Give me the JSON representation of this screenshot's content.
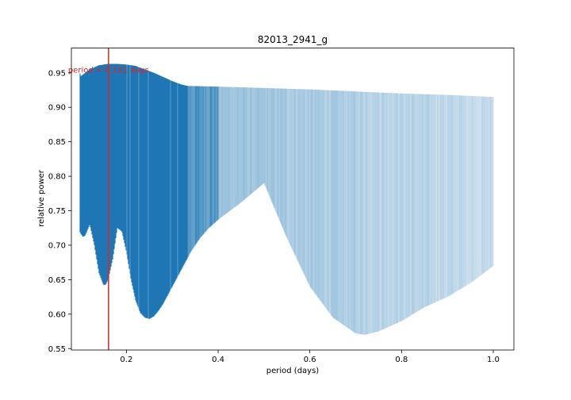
{
  "chart_data": {
    "type": "area",
    "title": "82013_2941_g",
    "xlabel": "period (days)",
    "ylabel": "relative power",
    "xlim": [
      0.08,
      1.045
    ],
    "ylim": [
      0.548,
      0.986
    ],
    "xticks": [
      0.2,
      0.4,
      0.6,
      0.8,
      1.0
    ],
    "xtick_labels": [
      "0.2",
      "0.4",
      "0.6",
      "0.8",
      "1.0"
    ],
    "yticks": [
      0.55,
      0.6,
      0.65,
      0.7,
      0.75,
      0.8,
      0.85,
      0.9,
      0.95
    ],
    "ytick_labels": [
      "0.55",
      "0.60",
      "0.65",
      "0.70",
      "0.75",
      "0.80",
      "0.85",
      "0.90",
      "0.95"
    ],
    "grid": false,
    "series": [
      {
        "color": "#1f77b4",
        "upper": {
          "x": [
            0.098,
            0.1,
            0.11,
            0.12,
            0.13,
            0.14,
            0.15,
            0.16,
            0.18,
            0.2,
            0.22,
            0.24,
            0.26,
            0.28,
            0.3,
            0.32,
            0.333,
            0.4,
            0.5,
            0.6,
            0.7,
            0.8,
            0.9,
            1.0
          ],
          "y": [
            0.952,
            0.945,
            0.95,
            0.955,
            0.958,
            0.961,
            0.962,
            0.963,
            0.963,
            0.962,
            0.96,
            0.955,
            0.95,
            0.944,
            0.938,
            0.933,
            0.931,
            0.93,
            0.928,
            0.926,
            0.923,
            0.92,
            0.918,
            0.915
          ]
        },
        "lower": {
          "x": [
            0.098,
            0.1,
            0.105,
            0.11,
            0.115,
            0.12,
            0.13,
            0.14,
            0.15,
            0.155,
            0.16,
            0.17,
            0.18,
            0.19,
            0.2,
            0.21,
            0.22,
            0.23,
            0.24,
            0.25,
            0.26,
            0.27,
            0.28,
            0.3,
            0.32,
            0.34,
            0.36,
            0.38,
            0.4,
            0.45,
            0.5,
            0.55,
            0.6,
            0.65,
            0.7,
            0.72,
            0.75,
            0.8,
            0.85,
            0.9,
            0.95,
            1.0
          ],
          "y": [
            0.72,
            0.717,
            0.712,
            0.714,
            0.722,
            0.73,
            0.7,
            0.66,
            0.642,
            0.643,
            0.65,
            0.68,
            0.725,
            0.72,
            0.69,
            0.65,
            0.62,
            0.602,
            0.595,
            0.593,
            0.597,
            0.605,
            0.615,
            0.64,
            0.665,
            0.69,
            0.71,
            0.725,
            0.737,
            0.762,
            0.79,
            0.71,
            0.64,
            0.595,
            0.572,
            0.57,
            0.575,
            0.59,
            0.61,
            0.625,
            0.645,
            0.67
          ]
        }
      }
    ],
    "annotation": {
      "x": 0.161,
      "label": "period = 0.161 days",
      "color": "#d62728",
      "text_y": 0.955
    }
  }
}
